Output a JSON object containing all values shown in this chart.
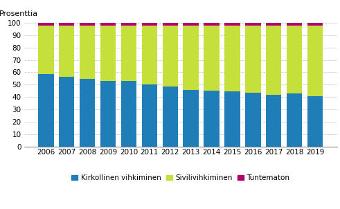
{
  "years": [
    2006,
    2007,
    2008,
    2009,
    2010,
    2011,
    2012,
    2013,
    2014,
    2015,
    2016,
    2017,
    2018,
    2019
  ],
  "kirkollinen": [
    58.5,
    56.5,
    54.5,
    53.0,
    53.0,
    50.5,
    48.5,
    46.0,
    45.5,
    44.5,
    43.5,
    42.0,
    43.0,
    41.0
  ],
  "siviili": [
    39.0,
    41.0,
    43.0,
    44.5,
    44.5,
    47.0,
    49.0,
    51.5,
    52.0,
    53.0,
    54.0,
    55.5,
    54.5,
    56.5
  ],
  "tuntematon": [
    2.5,
    2.5,
    2.5,
    2.5,
    2.5,
    2.5,
    2.5,
    2.5,
    2.5,
    2.5,
    2.5,
    2.5,
    2.5,
    2.5
  ],
  "bar_width": 0.75,
  "colors": {
    "kirkollinen": "#1f7db8",
    "siviili": "#c5e03a",
    "tuntematon": "#b5006e"
  },
  "ylabel": "Prosenttia",
  "ylim": [
    0,
    100
  ],
  "yticks": [
    0,
    10,
    20,
    30,
    40,
    50,
    60,
    70,
    80,
    90,
    100
  ],
  "legend_labels": [
    "Kirkollinen vihkiminen",
    "Sivilivihkiminen",
    "Tuntematon"
  ],
  "background_color": "#ffffff",
  "grid_color": "#c8c8c8"
}
